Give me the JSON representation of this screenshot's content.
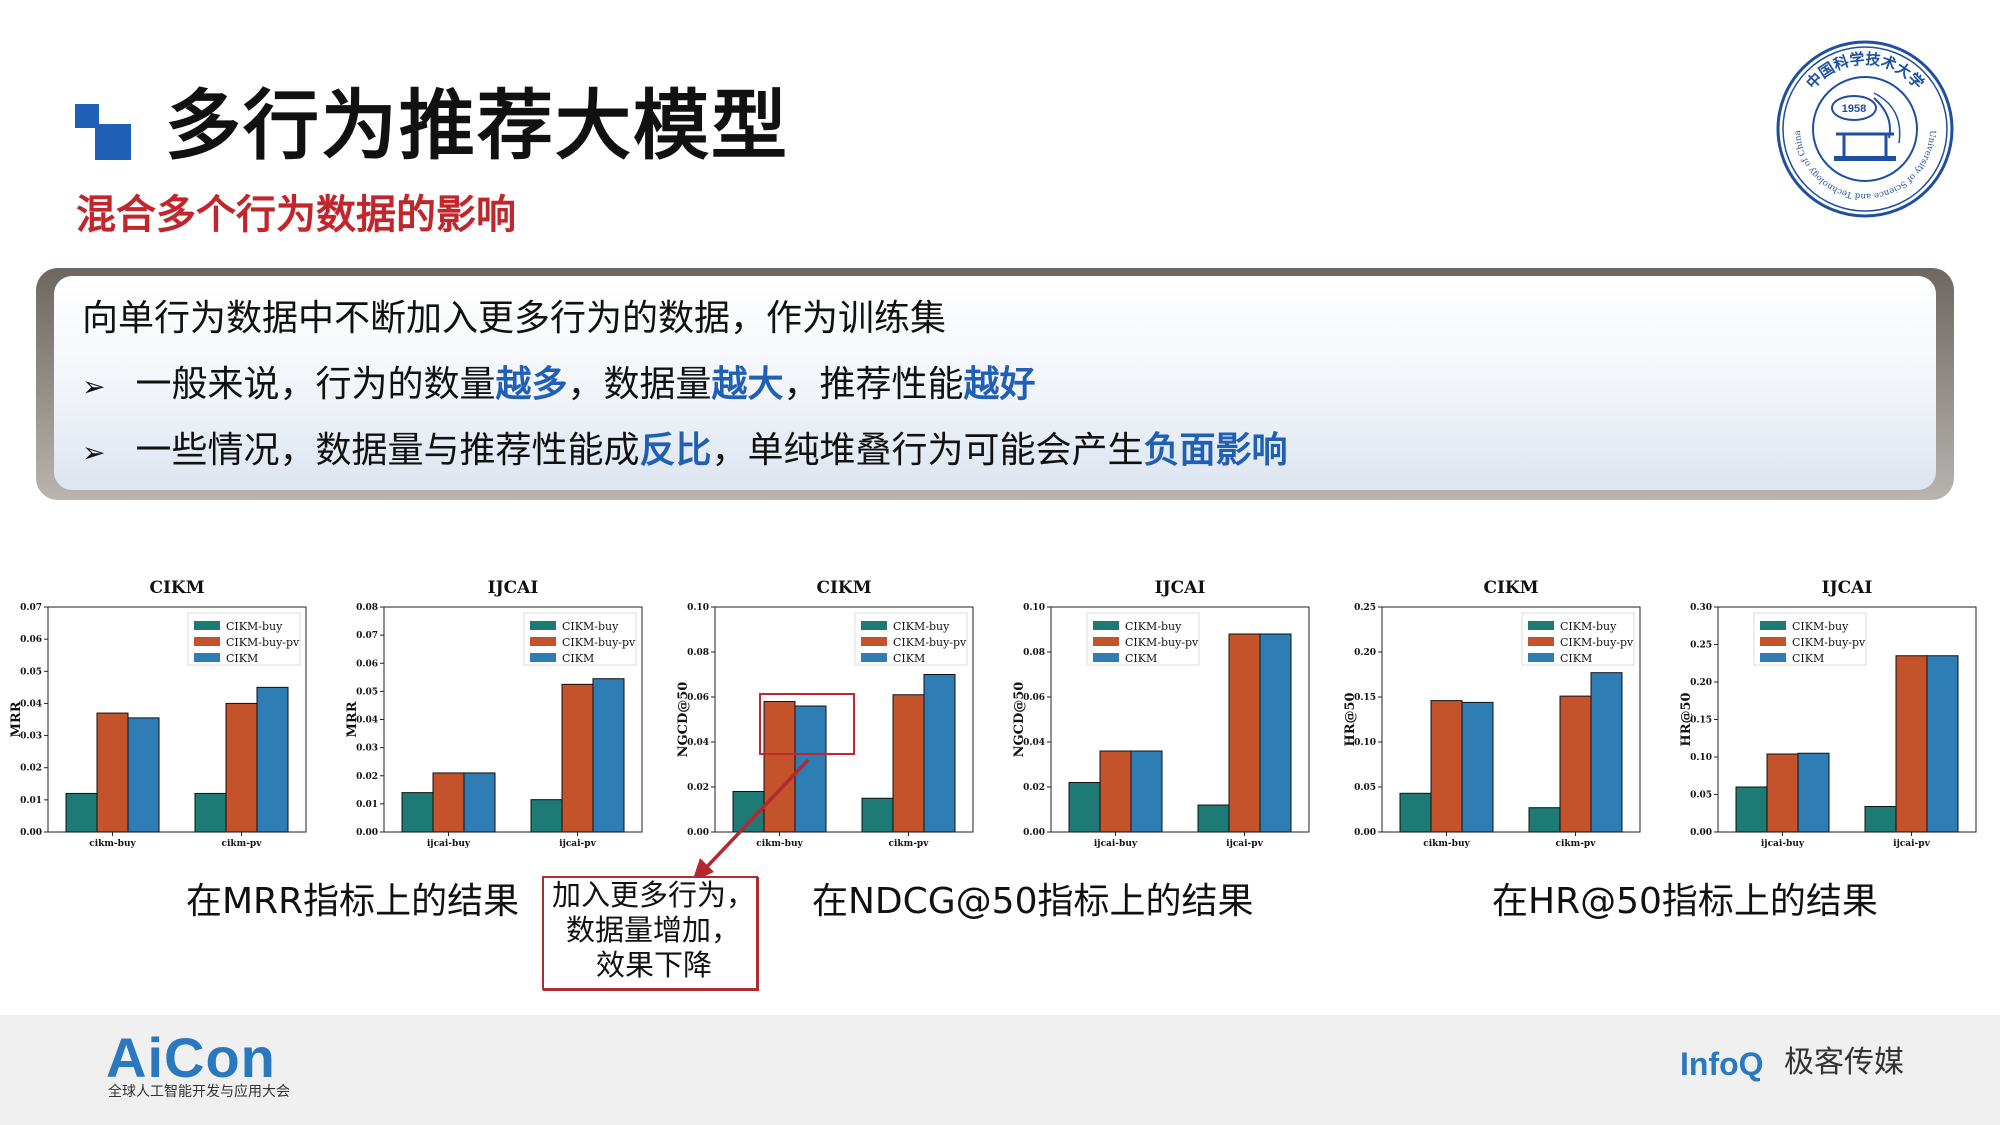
{
  "header": {
    "title": "多行为推荐大模型",
    "subtitle": "混合多个行为数据的影响"
  },
  "seal": {
    "year": "1958",
    "top_text": "中国科学技术大学",
    "ring_text": "University of Science and Technology of China"
  },
  "callout": {
    "intro": "向单行为数据中不断加入更多行为的数据，作为训练集",
    "bullet1": {
      "p1": "一般来说，行为的数量",
      "h1": "越多",
      "p2": "，数据量",
      "h2": "越大",
      "p3": "，推荐性能",
      "h3": "越好"
    },
    "bullet2": {
      "p1": "一些情况，数据量与推荐性能成",
      "h1": "反比",
      "p2": "，单纯堆叠行为可能会产生",
      "h2": "负面影响"
    },
    "bullet_glyph": "➢"
  },
  "captions": {
    "mrr": "在MRR指标上的结果",
    "ndcg": "在NDCG@50指标上的结果",
    "hr": "在HR@50指标上的结果"
  },
  "note": {
    "line1": "加入更多行为，",
    "line2": "数据量增加，",
    "line3": "效果下降"
  },
  "colors": {
    "buy": "#1d7a74",
    "buy_pv": "#c4522b",
    "full": "#2f7db5",
    "accent": "#1f5fb5",
    "red": "#c0262b"
  },
  "footer": {
    "aicon": "AiCon",
    "aicon_sub": "全球人工智能开发与应用大会",
    "infoq": "InfoQ",
    "geek": "极客传媒"
  },
  "chart_data": [
    {
      "type": "bar",
      "title": "CIKM",
      "ylabel": "MRR",
      "categories": [
        "cikm-buy",
        "cikm-pv"
      ],
      "ylim": [
        0,
        0.07
      ],
      "yticks": [
        0.0,
        0.01,
        0.02,
        0.03,
        0.04,
        0.05,
        0.06,
        0.07
      ],
      "legend_position": "top-right",
      "series": [
        {
          "name": "CIKM-buy",
          "values": [
            0.012,
            0.012
          ]
        },
        {
          "name": "CIKM-buy-pv",
          "values": [
            0.037,
            0.04
          ]
        },
        {
          "name": "CIKM",
          "values": [
            0.0355,
            0.045
          ]
        }
      ]
    },
    {
      "type": "bar",
      "title": "IJCAI",
      "ylabel": "MRR",
      "categories": [
        "ijcai-buy",
        "ijcai-pv"
      ],
      "ylim": [
        0,
        0.08
      ],
      "yticks": [
        0.0,
        0.01,
        0.02,
        0.03,
        0.04,
        0.05,
        0.06,
        0.07,
        0.08
      ],
      "legend_position": "top-right",
      "series": [
        {
          "name": "CIKM-buy",
          "values": [
            0.014,
            0.0115
          ]
        },
        {
          "name": "CIKM-buy-pv",
          "values": [
            0.021,
            0.0525
          ]
        },
        {
          "name": "CIKM",
          "values": [
            0.021,
            0.0545
          ]
        }
      ]
    },
    {
      "type": "bar",
      "title": "CIKM",
      "ylabel": "NGCD@50",
      "categories": [
        "cikm-buy",
        "cikm-pv"
      ],
      "ylim": [
        0,
        0.1
      ],
      "yticks": [
        0.0,
        0.02,
        0.04,
        0.06,
        0.08,
        0.1
      ],
      "legend_position": "top-right",
      "series": [
        {
          "name": "CIKM-buy",
          "values": [
            0.018,
            0.015
          ]
        },
        {
          "name": "CIKM-buy-pv",
          "values": [
            0.058,
            0.061
          ]
        },
        {
          "name": "CIKM",
          "values": [
            0.056,
            0.07
          ]
        }
      ]
    },
    {
      "type": "bar",
      "title": "IJCAI",
      "ylabel": "NGCD@50",
      "categories": [
        "ijcai-buy",
        "ijcai-pv"
      ],
      "ylim": [
        0,
        0.1
      ],
      "yticks": [
        0.0,
        0.02,
        0.04,
        0.06,
        0.08,
        0.1
      ],
      "legend_position": "top-left",
      "series": [
        {
          "name": "CIKM-buy",
          "values": [
            0.022,
            0.012
          ]
        },
        {
          "name": "CIKM-buy-pv",
          "values": [
            0.036,
            0.088
          ]
        },
        {
          "name": "CIKM",
          "values": [
            0.036,
            0.088
          ]
        }
      ]
    },
    {
      "type": "bar",
      "title": "CIKM",
      "ylabel": "HR@50",
      "categories": [
        "cikm-buy",
        "cikm-pv"
      ],
      "ylim": [
        0,
        0.25
      ],
      "yticks": [
        0.0,
        0.05,
        0.1,
        0.15,
        0.2,
        0.25
      ],
      "legend_position": "top-right",
      "series": [
        {
          "name": "CIKM-buy",
          "values": [
            0.043,
            0.027
          ]
        },
        {
          "name": "CIKM-buy-pv",
          "values": [
            0.146,
            0.151
          ]
        },
        {
          "name": "CIKM",
          "values": [
            0.144,
            0.177
          ]
        }
      ]
    },
    {
      "type": "bar",
      "title": "IJCAI",
      "ylabel": "HR@50",
      "categories": [
        "ijcai-buy",
        "ijcai-pv"
      ],
      "ylim": [
        0,
        0.3
      ],
      "yticks": [
        0.0,
        0.05,
        0.1,
        0.15,
        0.2,
        0.25,
        0.3
      ],
      "legend_position": "top-left",
      "series": [
        {
          "name": "CIKM-buy",
          "values": [
            0.06,
            0.034
          ]
        },
        {
          "name": "CIKM-buy-pv",
          "values": [
            0.104,
            0.235
          ]
        },
        {
          "name": "CIKM",
          "values": [
            0.105,
            0.235
          ]
        }
      ]
    }
  ]
}
